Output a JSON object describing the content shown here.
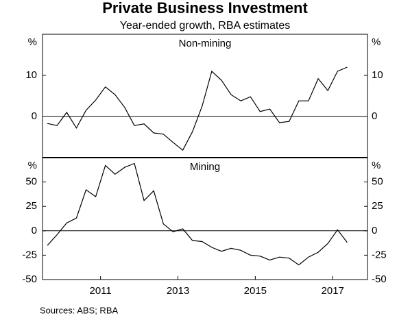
{
  "title": "Private Business Investment",
  "subtitle": "Year-ended growth, RBA estimates",
  "source": "Sources:   ABS; RBA",
  "chart_data": [
    {
      "type": "line",
      "title": "Non-mining",
      "y_unit": "%",
      "x": [
        2010.125,
        2010.375,
        2010.625,
        2010.875,
        2011.125,
        2011.375,
        2011.625,
        2011.875,
        2012.125,
        2012.375,
        2012.625,
        2012.875,
        2013.125,
        2013.375,
        2013.625,
        2013.875,
        2014.125,
        2014.375,
        2014.625,
        2014.875,
        2015.125,
        2015.375,
        2015.625,
        2015.875,
        2016.125,
        2016.375,
        2016.625,
        2016.875,
        2017.125,
        2017.375,
        2017.625,
        2017.875
      ],
      "series": [
        {
          "color": "#000000",
          "values": [
            -1.7,
            -2.2,
            1.0,
            -2.8,
            1.5,
            4.0,
            7.2,
            5.3,
            2.2,
            -2.2,
            -1.8,
            -4.0,
            -4.3,
            -6.3,
            -8.2,
            -3.7,
            2.5,
            11.0,
            8.8,
            5.3,
            3.8,
            4.8,
            1.2,
            1.8,
            -1.5,
            -1.2,
            3.8,
            3.8,
            9.2,
            6.3,
            11.0,
            12.0
          ]
        }
      ],
      "xlim": [
        2010,
        2018.4
      ],
      "ylim": [
        -10,
        20
      ],
      "yticks": [
        0,
        10
      ]
    },
    {
      "type": "line",
      "title": "Mining",
      "y_unit": "%",
      "x": [
        2010.125,
        2010.375,
        2010.625,
        2010.875,
        2011.125,
        2011.375,
        2011.625,
        2011.875,
        2012.125,
        2012.375,
        2012.625,
        2012.875,
        2013.125,
        2013.375,
        2013.625,
        2013.875,
        2014.125,
        2014.375,
        2014.625,
        2014.875,
        2015.125,
        2015.375,
        2015.625,
        2015.875,
        2016.125,
        2016.375,
        2016.625,
        2016.875,
        2017.125,
        2017.375,
        2017.625,
        2017.875
      ],
      "series": [
        {
          "color": "#000000",
          "values": [
            -15,
            -4,
            8,
            13,
            42,
            35,
            67,
            58,
            65,
            69,
            31,
            41,
            7,
            -1,
            2,
            -10,
            -11,
            -17,
            -21,
            -18,
            -20,
            -25,
            -26,
            -30,
            -27,
            -28,
            -35,
            -27,
            -22,
            -13,
            1,
            -12
          ]
        }
      ],
      "xlim": [
        2010,
        2018.4
      ],
      "ylim": [
        -50,
        75
      ],
      "yticks": [
        -50,
        -25,
        0,
        25,
        50
      ],
      "xticks": [
        {
          "value": 2011.5,
          "label": "2011"
        },
        {
          "value": 2013.5,
          "label": "2013"
        },
        {
          "value": 2015.5,
          "label": "2015"
        },
        {
          "value": 2017.5,
          "label": "2017"
        }
      ]
    }
  ]
}
